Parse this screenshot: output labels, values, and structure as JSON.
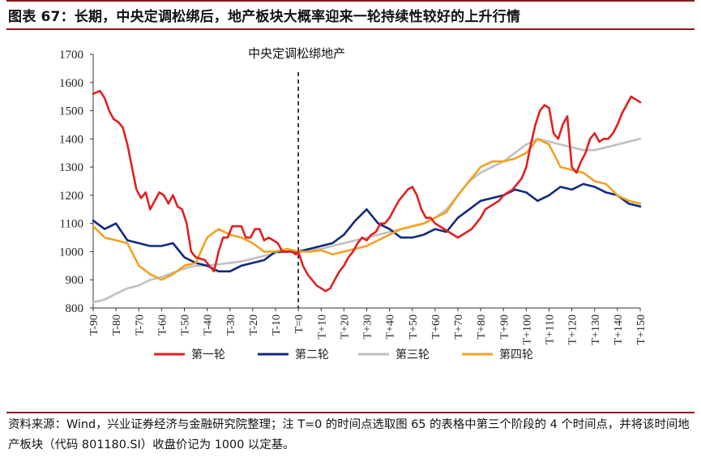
{
  "title": "图表 67：长期，中央定调松绑后，地产板块大概率迎来一轮持续性较好的上升行情",
  "source": "资料来源：Wind，兴业证券经济与金融研究院整理；注 T=0 的时间点选取图 65 的表格中第三个阶段的 4 个时间点，并将该时间地产板块（代码 801180.SI）收盘价记为 1000 以定基。",
  "chart_data": {
    "type": "line",
    "annotation": "中央定调松绑地产",
    "ylim": [
      800,
      1700
    ],
    "yticks": [
      800,
      900,
      1000,
      1100,
      1200,
      1300,
      1400,
      1500,
      1600,
      1700
    ],
    "xlim": [
      -90,
      150
    ],
    "xtick_labels": [
      "T-90",
      "T-80",
      "T-70",
      "T-60",
      "T-50",
      "T-40",
      "T-30",
      "T-20",
      "T-10",
      "T=0",
      "T+10",
      "T+20",
      "T+30",
      "T+40",
      "T+50",
      "T+60",
      "T+70",
      "T+80",
      "T+90",
      "T+100",
      "T+110",
      "T+120",
      "T+130",
      "T+140",
      "T+150"
    ],
    "xtick_values": [
      -90,
      -80,
      -70,
      -60,
      -50,
      -40,
      -30,
      -20,
      -10,
      0,
      10,
      20,
      30,
      40,
      50,
      60,
      70,
      80,
      90,
      100,
      110,
      120,
      130,
      140,
      150
    ],
    "vline_x": 0,
    "legend_position": "bottom",
    "series": [
      {
        "name": "第一轮",
        "color": "#e02020",
        "x": [
          -90,
          -87,
          -85,
          -83,
          -81,
          -79,
          -77,
          -75,
          -73,
          -71,
          -69,
          -67,
          -65,
          -63,
          -61,
          -59,
          -57,
          -55,
          -53,
          -51,
          -49,
          -47,
          -45,
          -43,
          -41,
          -39,
          -37,
          -35,
          -33,
          -31,
          -29,
          -27,
          -25,
          -23,
          -21,
          -19,
          -17,
          -15,
          -13,
          -11,
          -9,
          -7,
          -5,
          -3,
          -1,
          0,
          2,
          4,
          6,
          8,
          10,
          12,
          14,
          16,
          18,
          20,
          22,
          24,
          26,
          28,
          30,
          32,
          34,
          36,
          38,
          40,
          42,
          44,
          46,
          48,
          50,
          52,
          54,
          56,
          58,
          60,
          62,
          64,
          66,
          68,
          70,
          72,
          74,
          76,
          78,
          80,
          82,
          84,
          86,
          88,
          90,
          92,
          94,
          96,
          98,
          100,
          102,
          104,
          106,
          108,
          110,
          112,
          114,
          116,
          118,
          120,
          122,
          124,
          126,
          128,
          130,
          132,
          134,
          136,
          138,
          140,
          142,
          144,
          146,
          148,
          150
        ],
        "values": [
          1560,
          1570,
          1545,
          1500,
          1470,
          1460,
          1440,
          1380,
          1300,
          1220,
          1190,
          1210,
          1150,
          1180,
          1210,
          1200,
          1170,
          1200,
          1160,
          1150,
          1100,
          1000,
          980,
          975,
          970,
          950,
          930,
          1000,
          1050,
          1050,
          1090,
          1090,
          1090,
          1050,
          1050,
          1080,
          1080,
          1040,
          1050,
          1040,
          1030,
          1000,
          1000,
          1000,
          990,
          1000,
          950,
          920,
          900,
          880,
          870,
          860,
          870,
          900,
          930,
          950,
          980,
          1000,
          1030,
          1050,
          1040,
          1060,
          1070,
          1100,
          1100,
          1120,
          1150,
          1180,
          1200,
          1220,
          1230,
          1200,
          1150,
          1120,
          1120,
          1100,
          1090,
          1080,
          1070,
          1060,
          1050,
          1060,
          1070,
          1080,
          1100,
          1120,
          1150,
          1160,
          1170,
          1180,
          1200,
          1210,
          1220,
          1240,
          1260,
          1300,
          1380,
          1450,
          1500,
          1520,
          1510,
          1420,
          1400,
          1450,
          1480,
          1300,
          1280,
          1320,
          1350,
          1400,
          1420,
          1390,
          1400,
          1400,
          1420,
          1450,
          1490,
          1520,
          1550,
          1540,
          1530
        ],
        "dense": true
      },
      {
        "name": "第二轮",
        "color": "#112a80",
        "x": [
          -90,
          -85,
          -80,
          -75,
          -70,
          -65,
          -60,
          -55,
          -50,
          -45,
          -40,
          -35,
          -30,
          -25,
          -20,
          -15,
          -10,
          -5,
          0,
          5,
          10,
          15,
          20,
          25,
          30,
          35,
          40,
          45,
          50,
          55,
          60,
          65,
          70,
          75,
          80,
          85,
          90,
          95,
          100,
          105,
          110,
          115,
          120,
          125,
          130,
          135,
          140,
          145,
          150
        ],
        "values": [
          1110,
          1080,
          1100,
          1040,
          1030,
          1020,
          1020,
          1030,
          980,
          960,
          950,
          930,
          930,
          950,
          960,
          970,
          1000,
          1000,
          1000,
          1010,
          1020,
          1030,
          1060,
          1110,
          1150,
          1100,
          1080,
          1050,
          1050,
          1060,
          1080,
          1070,
          1120,
          1150,
          1180,
          1190,
          1200,
          1220,
          1210,
          1180,
          1200,
          1230,
          1220,
          1240,
          1230,
          1210,
          1200,
          1170,
          1160
        ]
      },
      {
        "name": "第三轮",
        "color": "#c0c0c0",
        "x": [
          -90,
          -85,
          -80,
          -75,
          -70,
          -65,
          -60,
          -55,
          -50,
          -45,
          -40,
          -35,
          -30,
          -25,
          -20,
          -15,
          -10,
          -5,
          0,
          5,
          10,
          15,
          20,
          25,
          30,
          35,
          40,
          45,
          50,
          55,
          60,
          65,
          70,
          75,
          80,
          85,
          90,
          95,
          100,
          105,
          110,
          115,
          120,
          125,
          130,
          135,
          140,
          145,
          150
        ],
        "values": [
          820,
          830,
          850,
          870,
          880,
          900,
          910,
          925,
          940,
          950,
          950,
          955,
          960,
          965,
          975,
          985,
          995,
          1000,
          1000,
          1005,
          1010,
          1020,
          1030,
          1040,
          1050,
          1060,
          1070,
          1080,
          1090,
          1100,
          1120,
          1150,
          1200,
          1250,
          1280,
          1300,
          1320,
          1350,
          1380,
          1400,
          1390,
          1380,
          1370,
          1360,
          1360,
          1370,
          1380,
          1390,
          1400
        ]
      },
      {
        "name": "第四轮",
        "color": "#f5a020",
        "x": [
          -90,
          -85,
          -80,
          -75,
          -70,
          -65,
          -60,
          -55,
          -50,
          -45,
          -40,
          -35,
          -30,
          -25,
          -20,
          -15,
          -10,
          -5,
          0,
          5,
          10,
          15,
          20,
          25,
          30,
          35,
          40,
          45,
          50,
          55,
          60,
          65,
          70,
          75,
          80,
          85,
          90,
          95,
          100,
          105,
          110,
          115,
          120,
          125,
          130,
          135,
          140,
          145,
          150
        ],
        "values": [
          1090,
          1050,
          1040,
          1030,
          950,
          920,
          900,
          920,
          950,
          960,
          1050,
          1080,
          1060,
          1050,
          1030,
          1000,
          1000,
          1010,
          1000,
          1000,
          1005,
          990,
          1000,
          1010,
          1020,
          1040,
          1060,
          1080,
          1090,
          1100,
          1120,
          1140,
          1200,
          1250,
          1300,
          1320,
          1320,
          1330,
          1350,
          1400,
          1380,
          1300,
          1290,
          1280,
          1250,
          1240,
          1200,
          1180,
          1170
        ]
      }
    ]
  }
}
